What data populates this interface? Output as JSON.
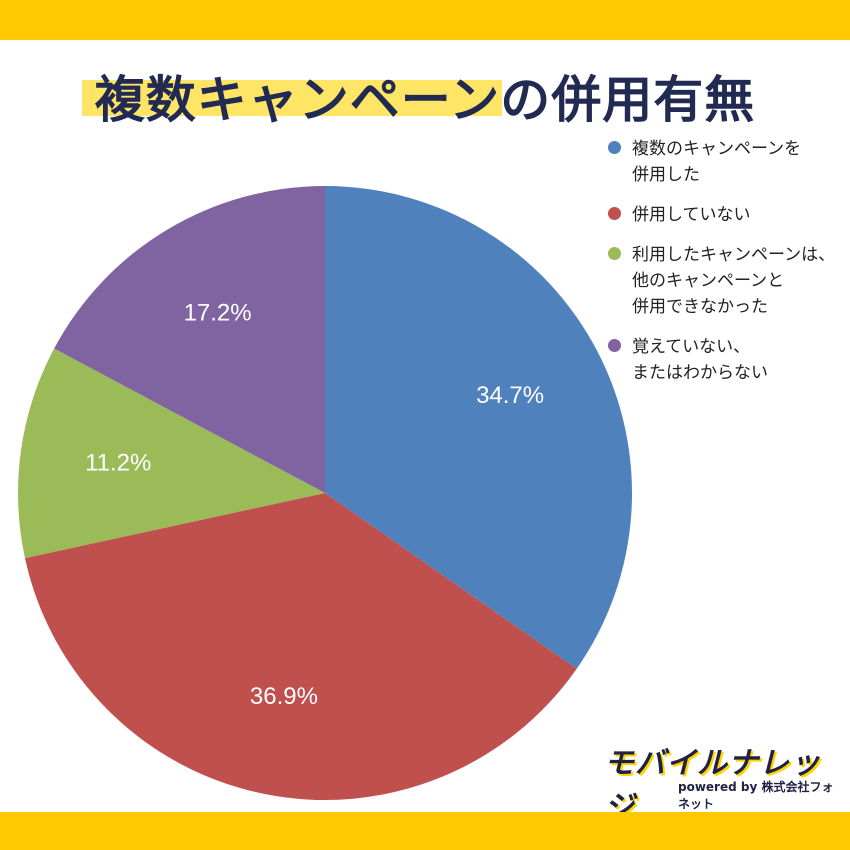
{
  "title": "複数キャンペーンの併用有無",
  "chart_data": {
    "type": "pie",
    "title": "複数キャンペーンの併用有無",
    "slices": [
      {
        "label": "複数のキャンペーンを\n併用した",
        "value": 34.7,
        "display": "34.7%",
        "color": "#4f81bd"
      },
      {
        "label": "併用していない",
        "value": 36.9,
        "display": "36.9%",
        "color": "#c0504d"
      },
      {
        "label": "利用したキャンペーンは、\n他のキャンペーンと\n併用できなかった",
        "value": 11.2,
        "display": "11.2%",
        "color": "#9bbb59"
      },
      {
        "label": "覚えていない、\nまたはわからない",
        "value": 17.2,
        "display": "17.2%",
        "color": "#8064a2"
      }
    ],
    "start_angle": "top",
    "direction": "clockwise",
    "legend_position": "right"
  },
  "logo": {
    "main": "モバイルナレッジ",
    "sub": "powered by 株式会社フォネット"
  },
  "colors": {
    "band": "#ffc800",
    "title_text": "#212a52",
    "title_highlight": "#ffe566"
  }
}
